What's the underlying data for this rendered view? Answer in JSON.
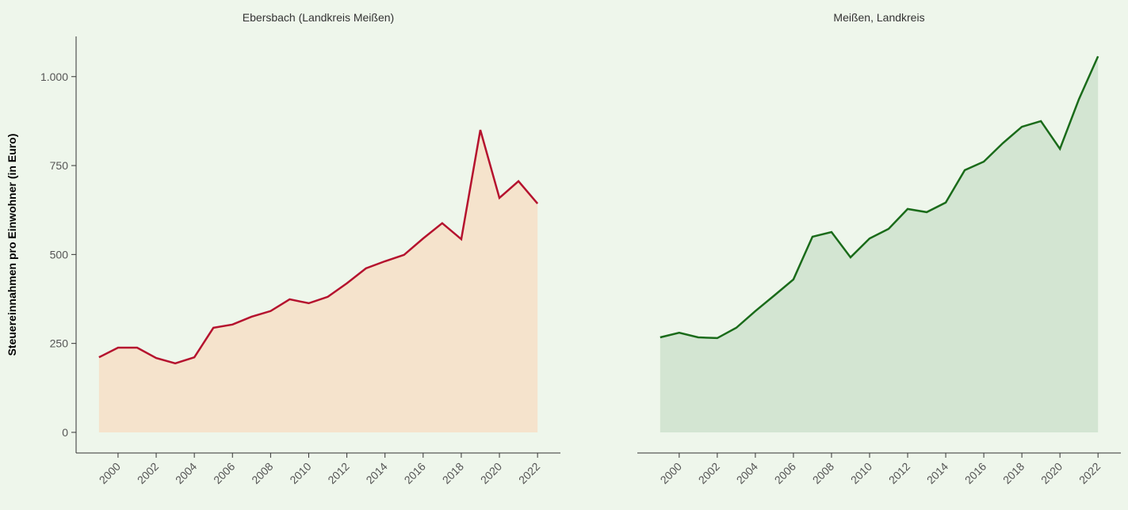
{
  "chart_data": [
    {
      "type": "area",
      "title": "Ebersbach (Landkreis Meißen)",
      "ylabel": "Steuereinnahmen pro Einwohner (in Euro)",
      "x": [
        1999,
        2000,
        2001,
        2002,
        2003,
        2004,
        2005,
        2006,
        2007,
        2008,
        2009,
        2010,
        2011,
        2012,
        2013,
        2014,
        2015,
        2016,
        2017,
        2018,
        2019,
        2020,
        2021,
        2022
      ],
      "values": [
        211,
        238,
        238,
        209,
        194,
        211,
        294,
        303,
        325,
        341,
        374,
        363,
        381,
        419,
        461,
        481,
        499,
        545,
        588,
        543,
        850,
        659,
        706,
        643
      ],
      "color": "#b5122e",
      "fill": "#f5e3cc",
      "xlim": [
        1997.8,
        2023.2
      ],
      "xticks": [
        2000,
        2002,
        2004,
        2006,
        2008,
        2010,
        2012,
        2014,
        2016,
        2018,
        2020,
        2022
      ],
      "ylim": [
        -58,
        1113
      ],
      "yticks": [
        0,
        250,
        500,
        750,
        {
          "value": 1000,
          "label": "1.000"
        }
      ]
    },
    {
      "type": "area",
      "title": "Meißen, Landkreis",
      "x": [
        1999,
        2000,
        2001,
        2002,
        2003,
        2004,
        2005,
        2006,
        2007,
        2008,
        2009,
        2010,
        2011,
        2012,
        2013,
        2014,
        2015,
        2016,
        2017,
        2018,
        2019,
        2020,
        2021,
        2022
      ],
      "values": [
        267,
        280,
        267,
        265,
        294,
        341,
        385,
        430,
        550,
        563,
        492,
        545,
        572,
        628,
        619,
        646,
        737,
        761,
        813,
        859,
        875,
        797,
        937,
        1057
      ],
      "color": "#1a6b1a",
      "fill": "#d3e5d2",
      "xlim": [
        1997.8,
        2023.2
      ],
      "xticks": [
        2000,
        2002,
        2004,
        2006,
        2008,
        2010,
        2012,
        2014,
        2016,
        2018,
        2020,
        2022
      ],
      "ylim": [
        -58,
        1113
      ]
    }
  ]
}
